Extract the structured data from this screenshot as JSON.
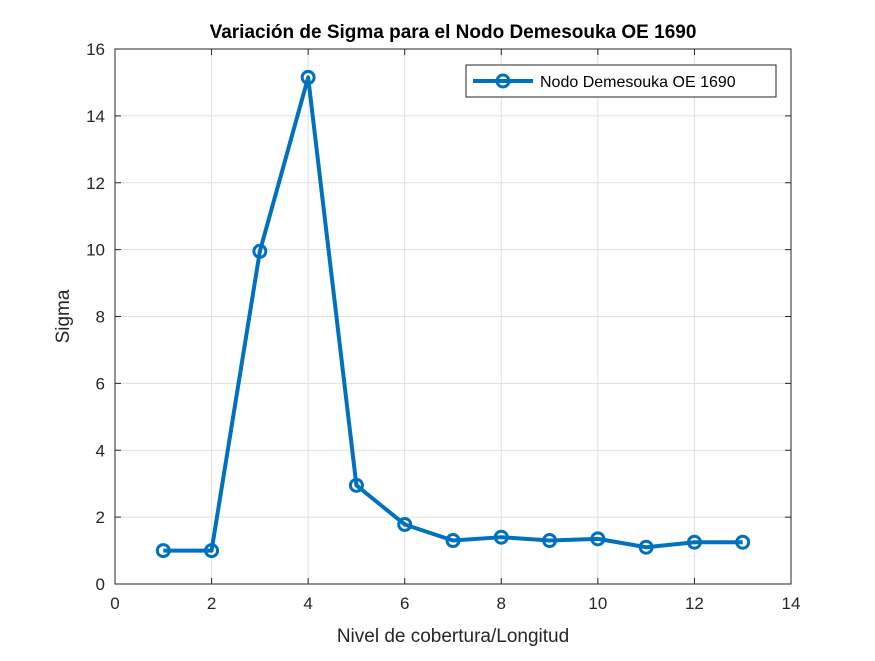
{
  "chart_data": {
    "type": "line",
    "title": "Variación de Sigma para el Nodo Demesouka OE 1690",
    "xlabel": "Nivel de cobertura/Longitud",
    "ylabel": "Sigma",
    "xlim": [
      0,
      14
    ],
    "ylim": [
      0,
      16
    ],
    "xticks": [
      0,
      2,
      4,
      6,
      8,
      10,
      12,
      14
    ],
    "yticks": [
      0,
      2,
      4,
      6,
      8,
      10,
      12,
      14,
      16
    ],
    "grid": true,
    "legend_position": "top-right",
    "series": [
      {
        "name": "Nodo Demesouka OE 1690",
        "color": "#0072BD",
        "marker": "circle",
        "x": [
          1,
          2,
          3,
          4,
          5,
          6,
          7,
          8,
          9,
          10,
          11,
          12,
          13
        ],
        "y": [
          1.0,
          1.0,
          9.95,
          15.15,
          2.95,
          1.78,
          1.3,
          1.4,
          1.3,
          1.35,
          1.1,
          1.25,
          1.25
        ]
      }
    ]
  }
}
